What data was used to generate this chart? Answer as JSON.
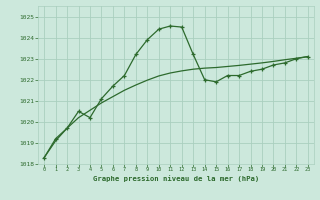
{
  "x": [
    0,
    1,
    2,
    3,
    4,
    5,
    6,
    7,
    8,
    9,
    10,
    11,
    12,
    13,
    14,
    15,
    16,
    17,
    18,
    19,
    20,
    21,
    22,
    23
  ],
  "y_main": [
    1018.3,
    1019.2,
    1019.7,
    1020.5,
    1020.2,
    1021.1,
    1021.7,
    1022.2,
    1023.2,
    1023.9,
    1024.4,
    1024.55,
    1024.5,
    1023.2,
    1022.0,
    1021.9,
    1022.2,
    1022.2,
    1022.4,
    1022.5,
    1022.7,
    1022.8,
    1023.0,
    1023.1
  ],
  "y_smooth": [
    1018.3,
    1019.1,
    1019.7,
    1020.2,
    1020.55,
    1020.9,
    1021.2,
    1021.5,
    1021.75,
    1021.98,
    1022.18,
    1022.32,
    1022.42,
    1022.5,
    1022.55,
    1022.58,
    1022.63,
    1022.68,
    1022.74,
    1022.8,
    1022.87,
    1022.95,
    1023.02,
    1023.1
  ],
  "line_color": "#2d6a2d",
  "bg_color": "#cce8dc",
  "grid_color": "#aacfbf",
  "xlabel": "Graphe pression niveau de la mer (hPa)",
  "ylim": [
    1018,
    1025.5
  ],
  "xlim": [
    -0.5,
    23.5
  ],
  "yticks": [
    1018,
    1019,
    1020,
    1021,
    1022,
    1023,
    1024,
    1025
  ],
  "xticks": [
    0,
    1,
    2,
    3,
    4,
    5,
    6,
    7,
    8,
    9,
    10,
    11,
    12,
    13,
    14,
    15,
    16,
    17,
    18,
    19,
    20,
    21,
    22,
    23
  ]
}
